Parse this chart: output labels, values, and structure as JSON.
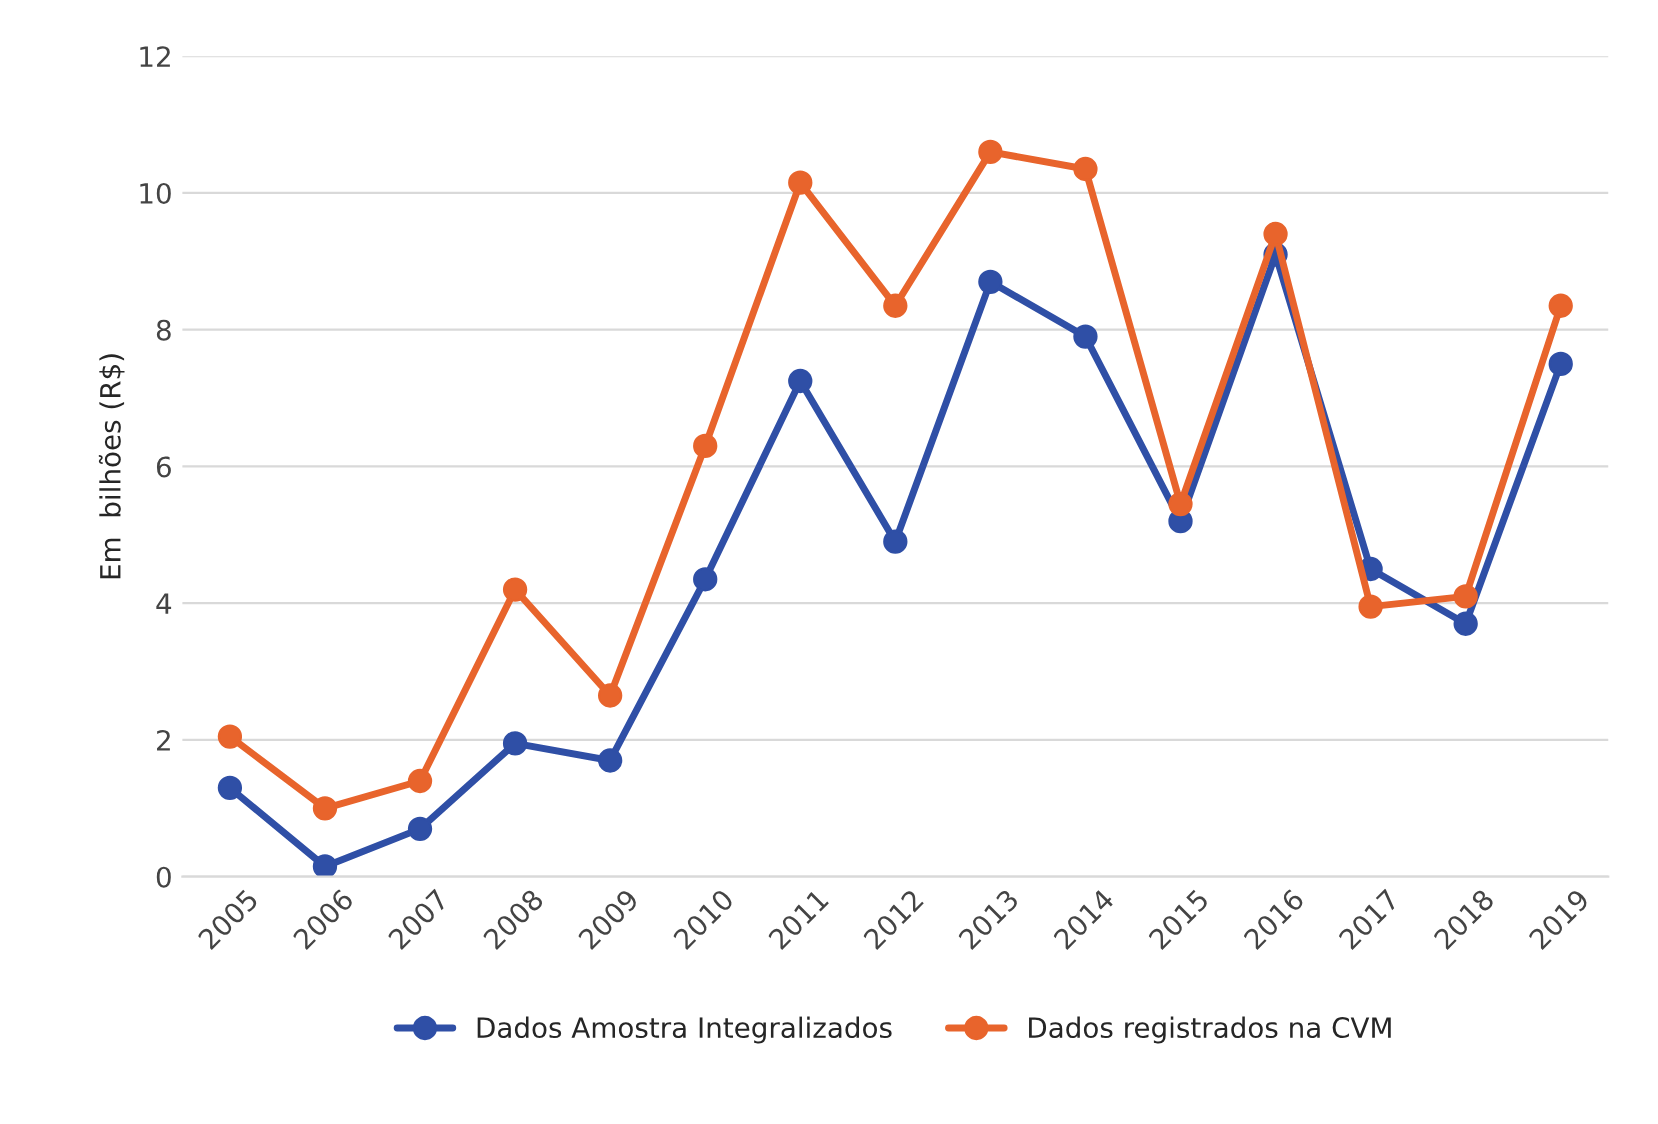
{
  "chart_data": {
    "type": "line",
    "ylabel": "Em  bilhões (R$)",
    "categories": [
      "2005",
      "2006",
      "2007",
      "2008",
      "2009",
      "2010",
      "2011",
      "2012",
      "2013",
      "2014",
      "2015",
      "2016",
      "2017",
      "2018",
      "2019"
    ],
    "series": [
      {
        "name": "Dados Amostra Integralizados",
        "color": "#2f4fa6",
        "values": [
          1.3,
          0.15,
          0.7,
          1.95,
          1.7,
          4.35,
          7.25,
          4.9,
          8.7,
          7.9,
          5.2,
          9.1,
          4.5,
          3.7,
          7.5
        ]
      },
      {
        "name": "Dados registrados na CVM",
        "color": "#e8642c",
        "values": [
          2.05,
          1.0,
          1.4,
          4.2,
          2.65,
          6.3,
          10.15,
          8.35,
          10.6,
          10.35,
          5.45,
          9.4,
          3.95,
          4.1,
          8.35
        ]
      }
    ],
    "ylim": [
      0,
      12
    ],
    "yticks": [
      0,
      2,
      4,
      6,
      8,
      10,
      12
    ],
    "grid": "y",
    "legend": "bottom",
    "marker": "circle",
    "line_style": "solid"
  }
}
